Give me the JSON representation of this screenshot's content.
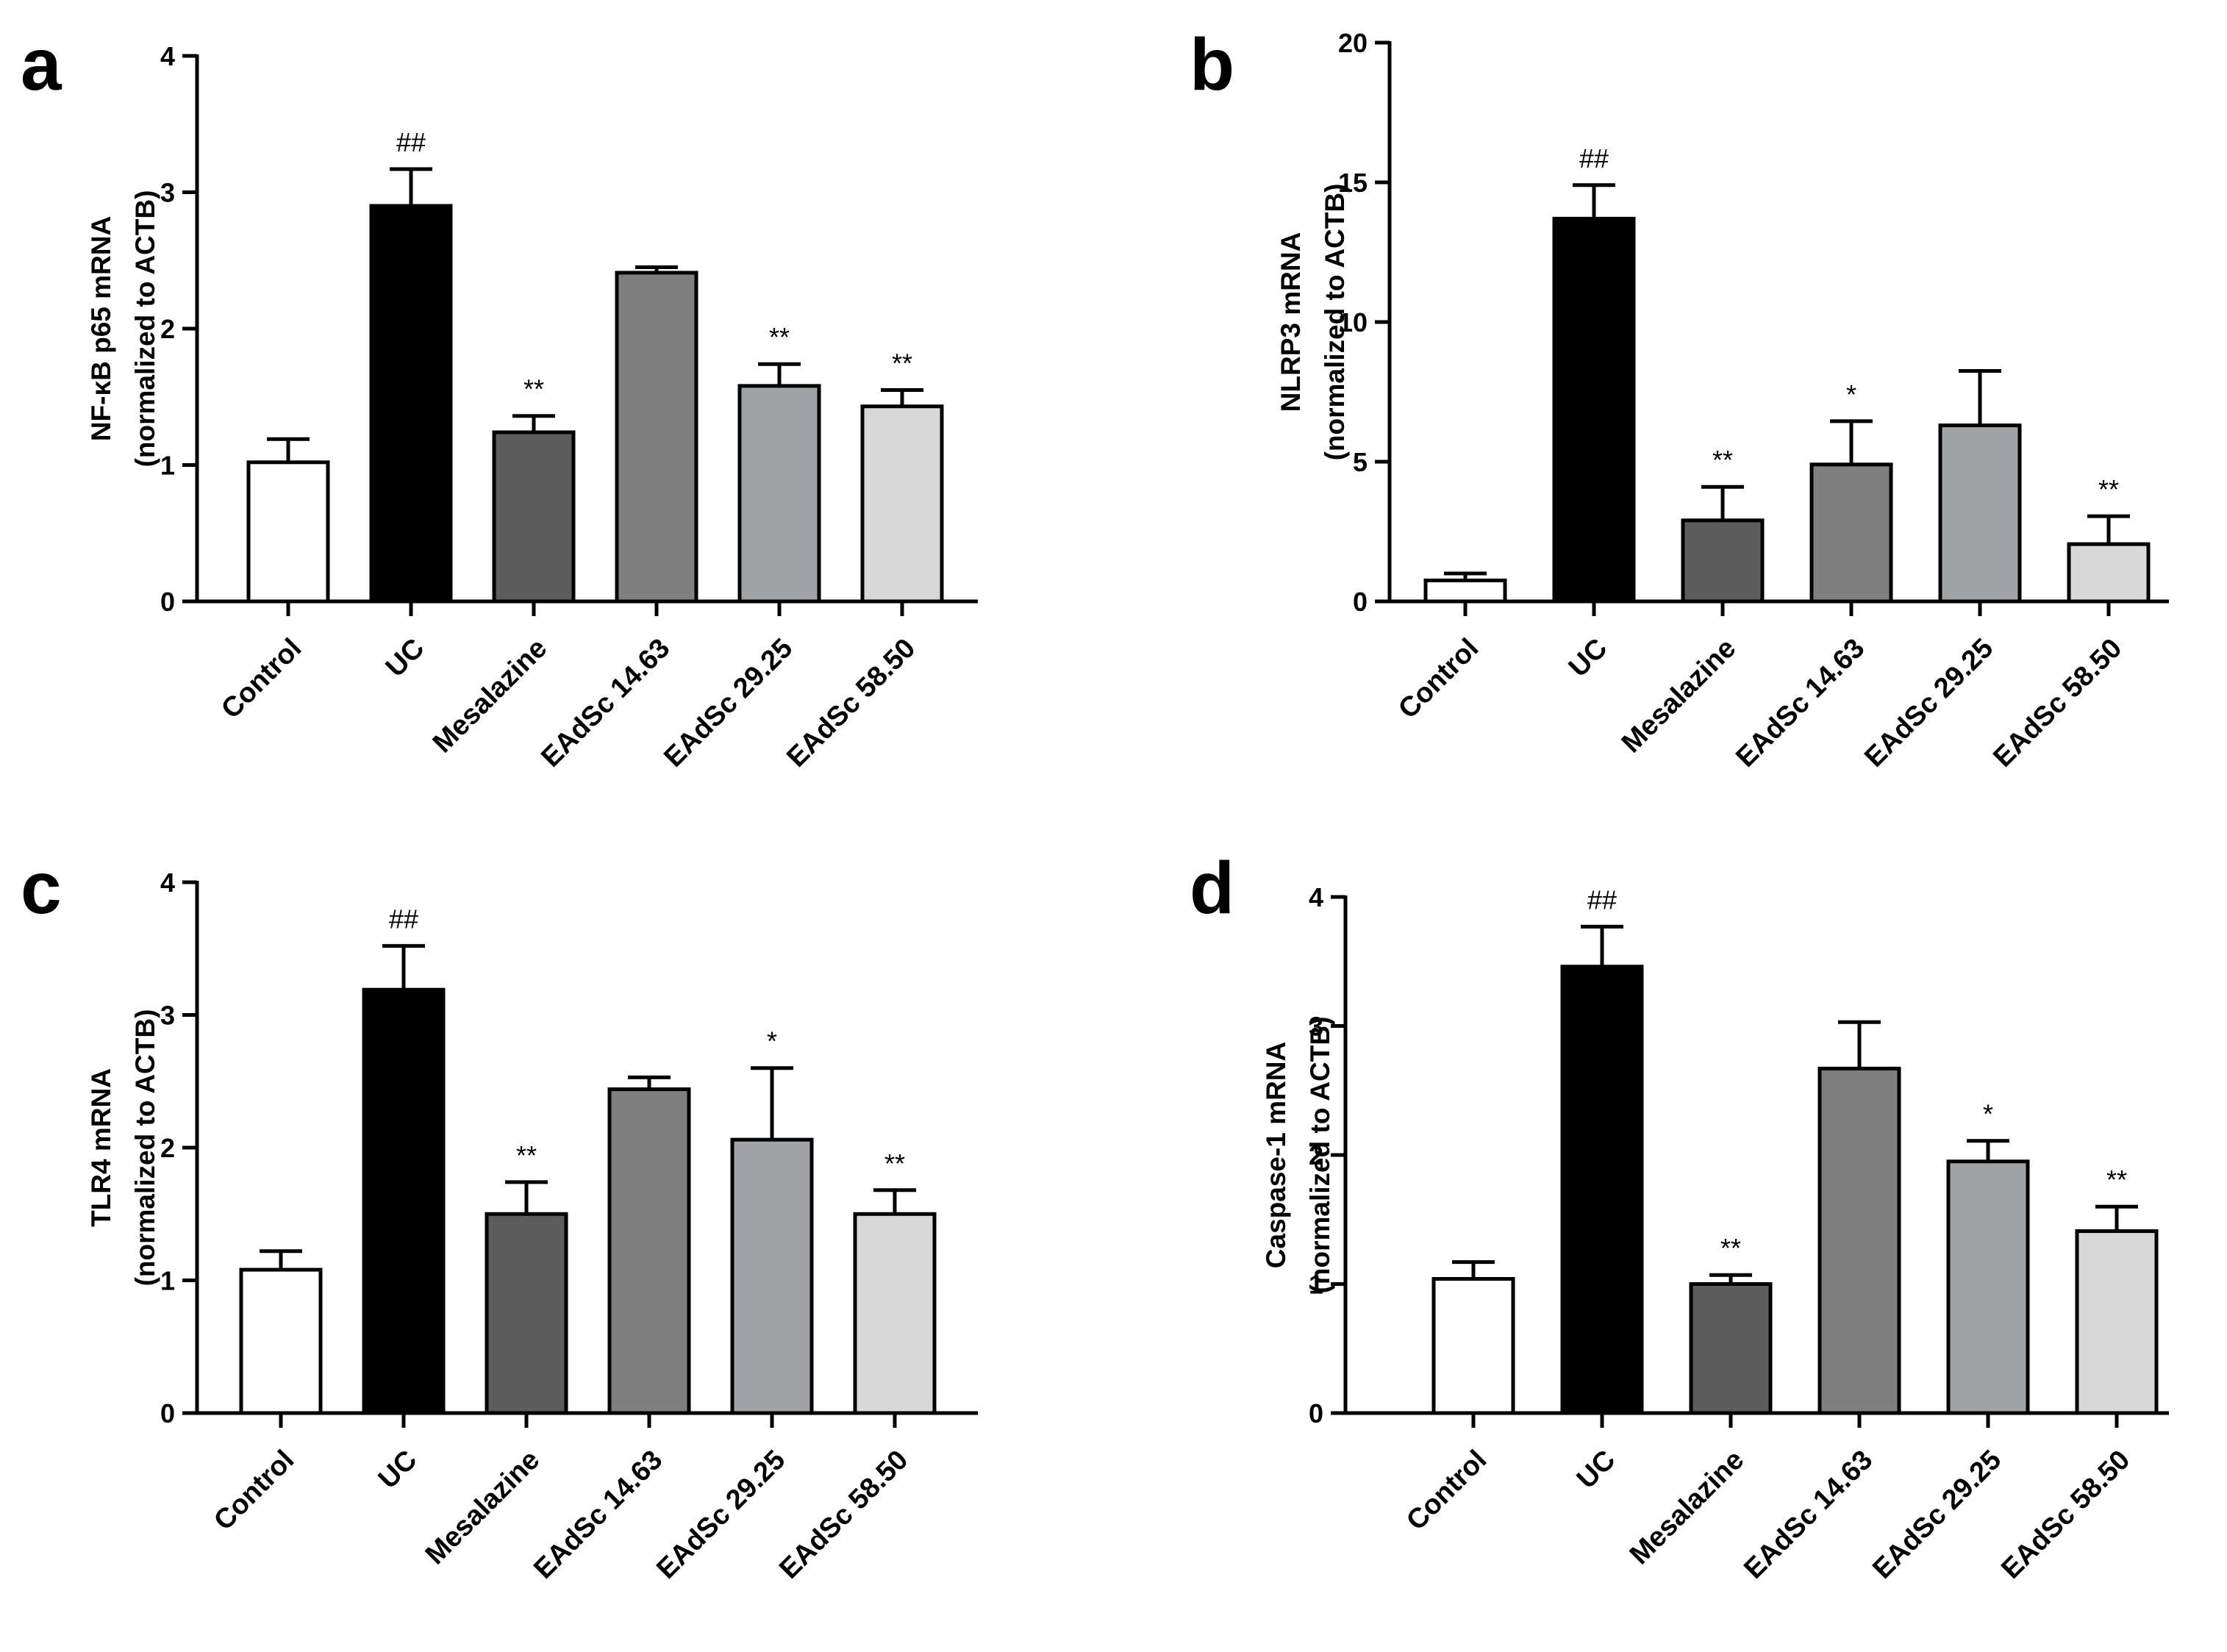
{
  "figure": {
    "colors": {
      "Control": "#ffffff",
      "UC": "#000000",
      "Mesalazine": "#5d5d5d",
      "EAdSc 14.63": "#7f7f7f",
      "EAdSc 29.25": "#a1a2a6",
      "EAdSc 58.50": "#d8d8d8"
    }
  },
  "chart_data": [
    {
      "panel": "a",
      "type": "bar",
      "ylabel": "NF-κB p65 mRNA",
      "ylabel2": "(normalized to ACTB)",
      "ylim": [
        0,
        4
      ],
      "yticks": [
        "0",
        "1",
        "2",
        "3",
        "4"
      ],
      "categories": [
        "Control",
        "UC",
        "Mesalazine",
        "EAdSc 14.63",
        "EAdSc 29.25",
        "EAdSc 58.50"
      ],
      "values": [
        1.02,
        2.9,
        1.24,
        2.41,
        1.58,
        1.43
      ],
      "errors": [
        0.17,
        0.27,
        0.12,
        0.04,
        0.16,
        0.12
      ],
      "annotations": [
        "",
        "##",
        "**",
        "",
        "**",
        "**"
      ]
    },
    {
      "panel": "b",
      "type": "bar",
      "ylabel": "NLRP3 mRNA",
      "ylabel2": "(normalized to ACTB)",
      "ylim": [
        0,
        20
      ],
      "yticks": [
        "0",
        "5",
        "10",
        "15",
        "20"
      ],
      "categories": [
        "Control",
        "UC",
        "Mesalazine",
        "EAdSc 14.63",
        "EAdSc 29.25",
        "EAdSc 58.50"
      ],
      "values": [
        0.75,
        13.7,
        2.9,
        4.9,
        6.3,
        2.05
      ],
      "errors": [
        0.25,
        1.2,
        1.2,
        1.55,
        1.95,
        1.0
      ],
      "annotations": [
        "",
        "##",
        "**",
        "*",
        "",
        "**"
      ]
    },
    {
      "panel": "c",
      "type": "bar",
      "ylabel": "TLR4 mRNA",
      "ylabel2": "(normalized to ACTB)",
      "ylim": [
        0,
        4
      ],
      "yticks": [
        "0",
        "1",
        "2",
        "3",
        "4"
      ],
      "categories": [
        "Control",
        "UC",
        "Mesalazine",
        "EAdSc 14.63",
        "EAdSc 29.25",
        "EAdSc 58.50"
      ],
      "values": [
        1.08,
        3.19,
        1.5,
        2.44,
        2.06,
        1.5
      ],
      "errors": [
        0.14,
        0.33,
        0.24,
        0.09,
        0.54,
        0.18
      ],
      "annotations": [
        "",
        "##",
        "**",
        "",
        "*",
        "**"
      ]
    },
    {
      "panel": "d",
      "type": "bar",
      "ylabel": "Caspase-1 mRNA",
      "ylabel2": "(normalized to ACTB)",
      "ylim": [
        0,
        4
      ],
      "yticks": [
        "0",
        "1",
        "2",
        "3",
        "4"
      ],
      "categories": [
        "Control",
        "UC",
        "Mesalazine",
        "EAdSc 14.63",
        "EAdSc 29.25",
        "EAdSc 58.50"
      ],
      "values": [
        1.04,
        3.46,
        1.0,
        2.67,
        1.95,
        1.41
      ],
      "errors": [
        0.13,
        0.31,
        0.07,
        0.36,
        0.16,
        0.19
      ],
      "annotations": [
        "",
        "##",
        "**",
        "",
        "*",
        "**"
      ]
    }
  ]
}
